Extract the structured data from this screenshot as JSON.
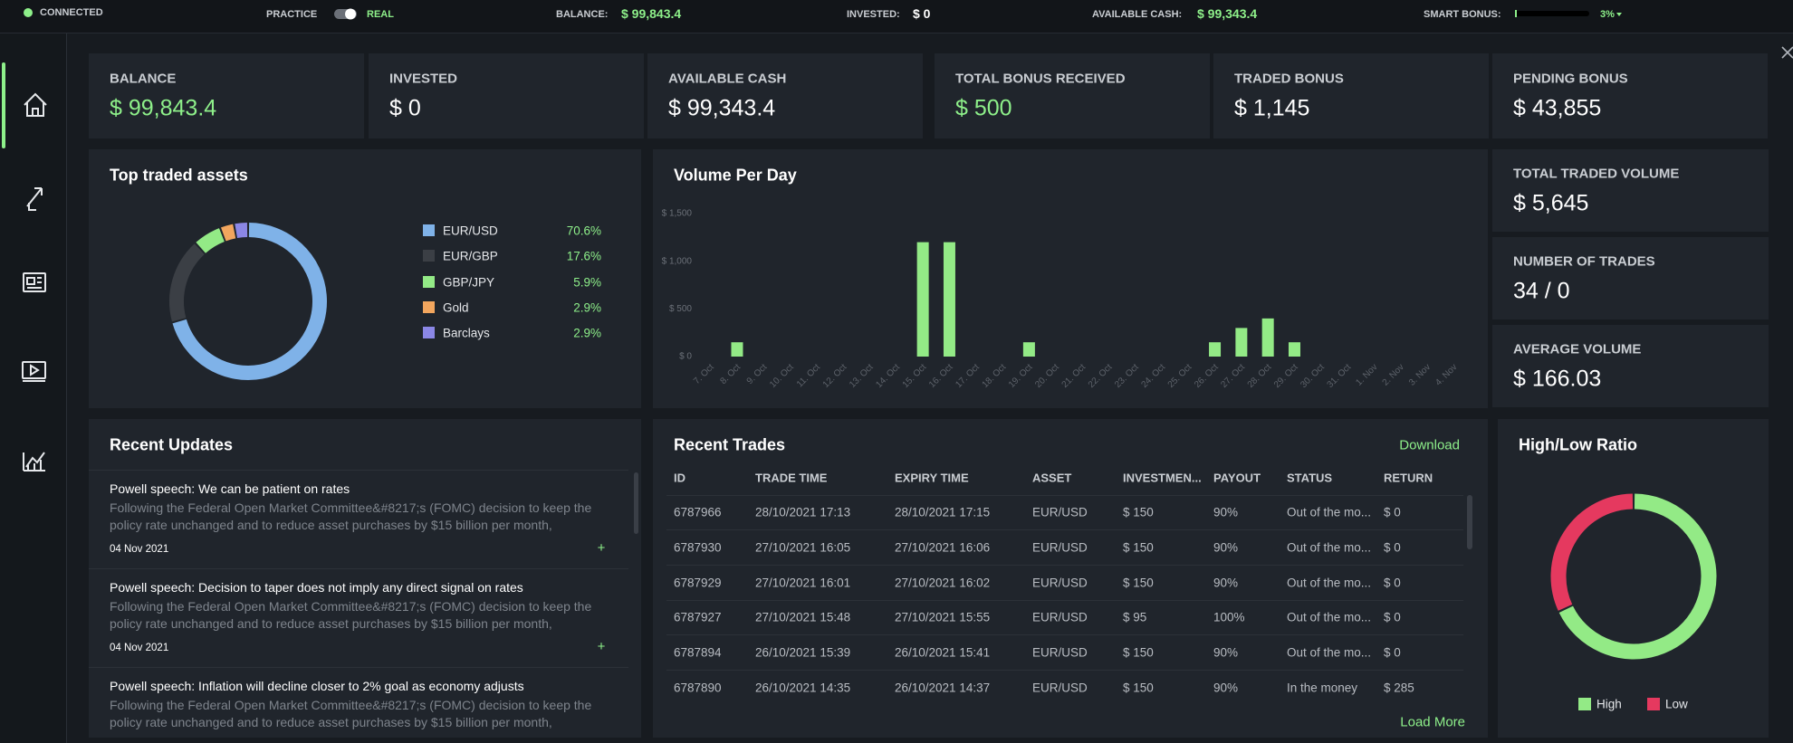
{
  "top_bar": {
    "status": "CONNECTED",
    "mode_left": "PRACTICE",
    "mode_right": "REAL",
    "balance_label": "BALANCE:",
    "balance": "$ 99,843.4",
    "invested_label": "INVESTED:",
    "invested": "$ 0",
    "cash_label": "AVAILABLE CASH:",
    "cash": "$ 99,343.4",
    "bonus_label": "SMART BONUS:",
    "bonus": "3%"
  },
  "summary": [
    {
      "label": "BALANCE",
      "value": "$ 99,843.4",
      "color": "#8ef08a"
    },
    {
      "label": "INVESTED",
      "value": "$ 0"
    },
    {
      "label": "AVAILABLE CASH",
      "value": "$ 99,343.4"
    },
    {
      "label": "TOTAL BONUS RECEIVED",
      "value": "$ 500",
      "color": "#8ef08a"
    },
    {
      "label": "TRADED BONUS",
      "value": "$ 1,145"
    },
    {
      "label": "PENDING BONUS",
      "value": "$ 43,855"
    }
  ],
  "stats": [
    {
      "label": "TOTAL TRADED VOLUME",
      "value": "$ 5,645"
    },
    {
      "label": "NUMBER OF TRADES",
      "value": "34 / 0"
    },
    {
      "label": "AVERAGE VOLUME",
      "value": "$ 166.03"
    }
  ],
  "assets_chart": {
    "type": "pie",
    "title": "Top traded assets",
    "categories": [
      "EUR/USD",
      "EUR/GBP",
      "GBP/JPY",
      "Gold",
      "Barclays"
    ],
    "values": [
      70.6,
      17.6,
      5.9,
      2.9,
      2.9
    ],
    "value_labels": [
      "70.6%",
      "17.6%",
      "5.9%",
      "2.9%",
      "2.9%"
    ],
    "colors": [
      "#7fb2e8",
      "#3b3f45",
      "#93ea86",
      "#f2a65e",
      "#8b87e6"
    ]
  },
  "volume_chart": {
    "type": "bar",
    "title": "Volume Per Day",
    "categories": [
      "7. Oct",
      "8. Oct",
      "9. Oct",
      "10. Oct",
      "11. Oct",
      "12. Oct",
      "13. Oct",
      "14. Oct",
      "15. Oct",
      "16. Oct",
      "17. Oct",
      "18. Oct",
      "19. Oct",
      "20. Oct",
      "21. Oct",
      "22. Oct",
      "23. Oct",
      "24. Oct",
      "25. Oct",
      "26. Oct",
      "27. Oct",
      "28. Oct",
      "29. Oct",
      "30. Oct",
      "31. Oct",
      "1. Nov",
      "2. Nov",
      "3. Nov",
      "4. Nov"
    ],
    "values": [
      0,
      150,
      0,
      0,
      0,
      0,
      0,
      0,
      1200,
      1200,
      0,
      0,
      150,
      0,
      0,
      0,
      0,
      0,
      0,
      150,
      300,
      400,
      150,
      0,
      0,
      0,
      0,
      0,
      0
    ],
    "color": "#93ea86",
    "ylim": [
      0,
      1500
    ],
    "yticks": [
      {
        "value": 0,
        "label": "$ 0"
      },
      {
        "value": 500,
        "label": "$ 500"
      },
      {
        "value": 1000,
        "label": "$ 1,000"
      },
      {
        "value": 1500,
        "label": "$ 1,500"
      }
    ],
    "grid": false
  },
  "recent_updates": {
    "title": "Recent Updates",
    "items": [
      {
        "title": "Powell speech: We can be patient on rates",
        "body": "Following the Federal Open Market Committee&#8217;s (FOMC) decision to keep the policy rate unchanged and to reduce asset purchases by $15 billion per month, FOMC...",
        "date": "04 Nov 2021"
      },
      {
        "title": "Powell speech: Decision to taper does not imply any direct signal on rates",
        "body": "Following the Federal Open Market Committee&#8217;s (FOMC) decision to keep the policy rate unchanged and to reduce asset purchases by $15 billion per month, FOMC...",
        "date": "04 Nov 2021"
      },
      {
        "title": "Powell speech: Inflation will decline closer to 2% goal as economy adjusts",
        "body": "Following the Federal Open Market Committee&#8217;s (FOMC) decision to keep the policy rate unchanged and to reduce asset purchases by $15 billion per month, FOMC..."
      }
    ]
  },
  "recent_trades": {
    "title": "Recent Trades",
    "download": "Download",
    "columns": [
      "ID",
      "TRADE TIME",
      "EXPIRY TIME",
      "ASSET",
      "INVESTMEN...",
      "PAYOUT",
      "STATUS",
      "RETURN"
    ],
    "rows": [
      [
        "6787966",
        "28/10/2021 17:13",
        "28/10/2021 17:15",
        "EUR/USD",
        "$ 150",
        "90%",
        "Out of the mo...",
        "$ 0"
      ],
      [
        "6787930",
        "27/10/2021 16:05",
        "27/10/2021 16:06",
        "EUR/USD",
        "$ 150",
        "90%",
        "Out of the mo...",
        "$ 0"
      ],
      [
        "6787929",
        "27/10/2021 16:01",
        "27/10/2021 16:02",
        "EUR/USD",
        "$ 150",
        "90%",
        "Out of the mo...",
        "$ 0"
      ],
      [
        "6787927",
        "27/10/2021 15:48",
        "27/10/2021 15:55",
        "EUR/USD",
        "$ 95",
        "100%",
        "Out of the mo...",
        "$ 0"
      ],
      [
        "6787894",
        "26/10/2021 15:39",
        "26/10/2021 15:41",
        "EUR/USD",
        "$ 150",
        "90%",
        "Out of the mo...",
        "$ 0"
      ],
      [
        "6787890",
        "26/10/2021 14:35",
        "26/10/2021 14:37",
        "EUR/USD",
        "$ 150",
        "90%",
        "In the money",
        "$ 285"
      ]
    ],
    "load_more": "Load More"
  },
  "ratio_chart": {
    "type": "pie",
    "title": "High/Low Ratio",
    "categories": [
      "High",
      "Low"
    ],
    "values": [
      68,
      32
    ],
    "colors": [
      "#93ea86",
      "#e5395f"
    ]
  }
}
